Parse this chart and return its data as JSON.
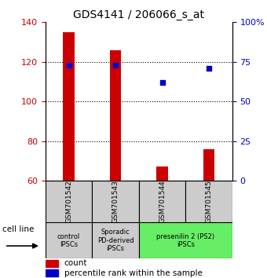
{
  "title": "GDS4141 / 206066_s_at",
  "samples": [
    "GSM701542",
    "GSM701543",
    "GSM701544",
    "GSM701545"
  ],
  "bar_values": [
    135,
    126,
    67,
    76
  ],
  "bar_bottom": 60,
  "percentile_values": [
    73,
    73,
    62,
    71
  ],
  "ylim_left": [
    60,
    140
  ],
  "ylim_right": [
    0,
    100
  ],
  "yticks_left": [
    60,
    80,
    100,
    120,
    140
  ],
  "yticks_right": [
    0,
    25,
    50,
    75,
    100
  ],
  "ytick_labels_right": [
    "0",
    "25",
    "50",
    "75",
    "100%"
  ],
  "bar_color": "#cc0000",
  "dot_color": "#0000cc",
  "groups": [
    {
      "label": "control\nIPSCs",
      "indices": [
        0
      ],
      "color": "#cccccc"
    },
    {
      "label": "Sporadic\nPD-derived\niPSCs",
      "indices": [
        1
      ],
      "color": "#cccccc"
    },
    {
      "label": "presenilin 2 (PS2)\niPSCs",
      "indices": [
        2,
        3
      ],
      "color": "#66ee66"
    }
  ],
  "cell_line_label": "cell line",
  "legend_count_label": "count",
  "legend_pct_label": "percentile rank within the sample",
  "left_tick_color": "#cc0000",
  "right_tick_color": "#0000cc"
}
